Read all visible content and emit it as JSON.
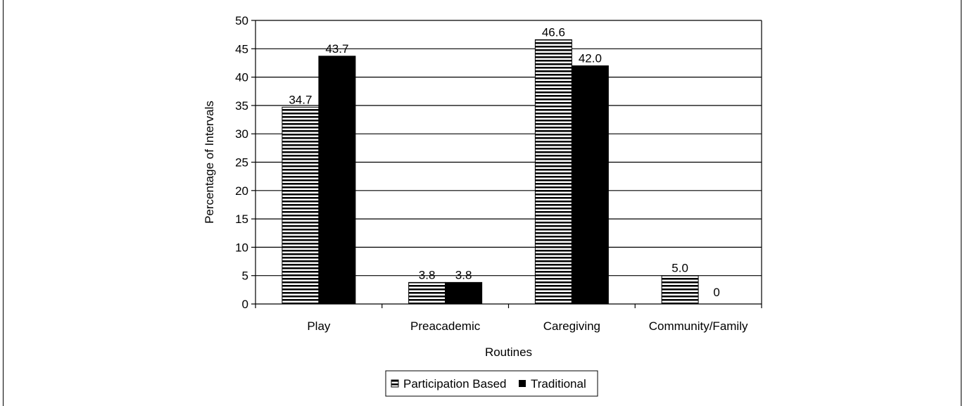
{
  "chart_data": {
    "type": "bar",
    "categories": [
      "Play",
      "Preacademic",
      "Caregiving",
      "Community/Family"
    ],
    "series": [
      {
        "name": "Participation Based",
        "values": [
          34.7,
          3.8,
          46.6,
          5.0
        ],
        "labels": [
          "34.7",
          "3.8",
          "46.6",
          "5.0"
        ],
        "pattern": "horizontal-stripes"
      },
      {
        "name": "Traditional",
        "values": [
          43.7,
          3.8,
          42.0,
          0
        ],
        "labels": [
          "43.7",
          "3.8",
          "42.0",
          "0"
        ],
        "pattern": "solid",
        "color": "#000000"
      }
    ],
    "xlabel": "Routines",
    "ylabel": "Percentage of Intervals",
    "ylim": [
      0,
      50
    ],
    "yticks": [
      0,
      5,
      10,
      15,
      20,
      25,
      30,
      35,
      40,
      45,
      50
    ],
    "grid": true,
    "legend_position": "bottom-center"
  }
}
